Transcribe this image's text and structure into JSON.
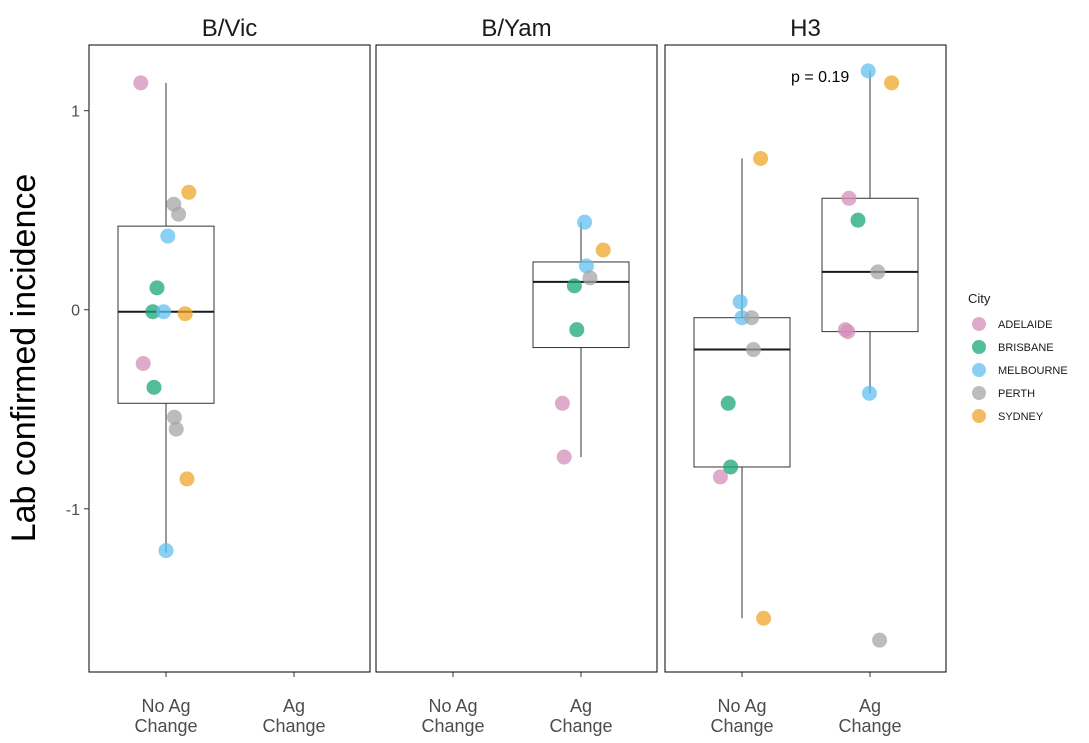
{
  "chart_data": {
    "type": "scatter",
    "ylabel": "Lab confirmed incidence",
    "xlabel": "",
    "ylim": [
      -1.82,
      1.33
    ],
    "y_ticks": [
      {
        "value": 1,
        "label": "1"
      },
      {
        "value": 0,
        "label": "0"
      },
      {
        "value": -1,
        "label": "-1"
      }
    ],
    "categories": [
      {
        "key": "noag",
        "line1": "No Ag",
        "line2": "Change"
      },
      {
        "key": "ag",
        "line1": "Ag",
        "line2": "Change"
      }
    ],
    "legend": {
      "title": "City",
      "position": "right",
      "entries": [
        {
          "name": "ADELAIDE",
          "color": "#d48fb8"
        },
        {
          "name": "BRISBANE",
          "color": "#1aa57a"
        },
        {
          "name": "MELBOURNE",
          "color": "#63bff0"
        },
        {
          "name": "PERTH",
          "color": "#a6a6a6"
        },
        {
          "name": "SYDNEY",
          "color": "#eda62a"
        }
      ]
    },
    "panels": [
      {
        "title": "B/Vic",
        "annotation": "",
        "boxes": [
          {
            "category": "noag",
            "lower_whisker": -1.22,
            "q1": -0.47,
            "median": -0.01,
            "q3": 0.42,
            "upper_whisker": 1.14
          }
        ],
        "points": [
          {
            "category": "noag",
            "jitter": -0.42,
            "y": 1.14,
            "city": "ADELAIDE"
          },
          {
            "category": "noag",
            "jitter": -0.38,
            "y": -0.27,
            "city": "ADELAIDE"
          },
          {
            "category": "noag",
            "jitter": -0.15,
            "y": 0.11,
            "city": "BRISBANE"
          },
          {
            "category": "noag",
            "jitter": -0.22,
            "y": -0.01,
            "city": "BRISBANE"
          },
          {
            "category": "noag",
            "jitter": -0.2,
            "y": -0.39,
            "city": "BRISBANE"
          },
          {
            "category": "noag",
            "jitter": 0.03,
            "y": 0.37,
            "city": "MELBOURNE"
          },
          {
            "category": "noag",
            "jitter": -0.04,
            "y": -0.01,
            "city": "MELBOURNE"
          },
          {
            "category": "noag",
            "jitter": 0.0,
            "y": -1.21,
            "city": "MELBOURNE"
          },
          {
            "category": "noag",
            "jitter": 0.13,
            "y": 0.53,
            "city": "PERTH"
          },
          {
            "category": "noag",
            "jitter": 0.21,
            "y": 0.48,
            "city": "PERTH"
          },
          {
            "category": "noag",
            "jitter": 0.14,
            "y": -0.54,
            "city": "PERTH"
          },
          {
            "category": "noag",
            "jitter": 0.17,
            "y": -0.6,
            "city": "PERTH"
          },
          {
            "category": "noag",
            "jitter": 0.38,
            "y": 0.59,
            "city": "SYDNEY"
          },
          {
            "category": "noag",
            "jitter": 0.32,
            "y": -0.02,
            "city": "SYDNEY"
          },
          {
            "category": "noag",
            "jitter": 0.35,
            "y": -0.85,
            "city": "SYDNEY"
          }
        ]
      },
      {
        "title": "B/Yam",
        "annotation": "",
        "boxes": [
          {
            "category": "ag",
            "lower_whisker": -0.74,
            "q1": -0.19,
            "median": 0.14,
            "q3": 0.24,
            "upper_whisker": 0.44
          }
        ],
        "points": [
          {
            "category": "ag",
            "jitter": -0.31,
            "y": -0.47,
            "city": "ADELAIDE"
          },
          {
            "category": "ag",
            "jitter": -0.28,
            "y": -0.74,
            "city": "ADELAIDE"
          },
          {
            "category": "ag",
            "jitter": -0.11,
            "y": 0.12,
            "city": "BRISBANE"
          },
          {
            "category": "ag",
            "jitter": -0.07,
            "y": -0.1,
            "city": "BRISBANE"
          },
          {
            "category": "ag",
            "jitter": 0.06,
            "y": 0.44,
            "city": "MELBOURNE"
          },
          {
            "category": "ag",
            "jitter": 0.09,
            "y": 0.22,
            "city": "MELBOURNE"
          },
          {
            "category": "ag",
            "jitter": 0.15,
            "y": 0.16,
            "city": "PERTH"
          },
          {
            "category": "ag",
            "jitter": 0.37,
            "y": 0.3,
            "city": "SYDNEY"
          }
        ]
      },
      {
        "title": "H3",
        "annotation": "p = 0.19",
        "boxes": [
          {
            "category": "noag",
            "lower_whisker": -1.55,
            "q1": -0.79,
            "median": -0.2,
            "q3": -0.04,
            "upper_whisker": 0.76
          },
          {
            "category": "ag",
            "lower_whisker": -0.42,
            "q1": -0.11,
            "median": 0.19,
            "q3": 0.56,
            "upper_whisker": 1.2
          }
        ],
        "points": [
          {
            "category": "noag",
            "jitter": -0.36,
            "y": -0.84,
            "city": "ADELAIDE"
          },
          {
            "category": "noag",
            "jitter": -0.23,
            "y": -0.47,
            "city": "BRISBANE"
          },
          {
            "category": "noag",
            "jitter": -0.19,
            "y": -0.79,
            "city": "BRISBANE"
          },
          {
            "category": "noag",
            "jitter": -0.03,
            "y": 0.04,
            "city": "MELBOURNE"
          },
          {
            "category": "noag",
            "jitter": 0.0,
            "y": -0.04,
            "city": "MELBOURNE"
          },
          {
            "category": "noag",
            "jitter": 0.16,
            "y": -0.04,
            "city": "PERTH"
          },
          {
            "category": "noag",
            "jitter": 0.19,
            "y": -0.2,
            "city": "PERTH"
          },
          {
            "category": "noag",
            "jitter": 0.31,
            "y": 0.76,
            "city": "SYDNEY"
          },
          {
            "category": "noag",
            "jitter": 0.36,
            "y": -1.55,
            "city": "SYDNEY"
          },
          {
            "category": "ag",
            "jitter": -0.35,
            "y": 0.56,
            "city": "ADELAIDE"
          },
          {
            "category": "ag",
            "jitter": -0.41,
            "y": -0.1,
            "city": "ADELAIDE"
          },
          {
            "category": "ag",
            "jitter": -0.37,
            "y": -0.11,
            "city": "ADELAIDE"
          },
          {
            "category": "ag",
            "jitter": -0.2,
            "y": 0.45,
            "city": "BRISBANE"
          },
          {
            "category": "ag",
            "jitter": -0.03,
            "y": 1.2,
            "city": "MELBOURNE"
          },
          {
            "category": "ag",
            "jitter": -0.01,
            "y": -0.42,
            "city": "MELBOURNE"
          },
          {
            "category": "ag",
            "jitter": 0.13,
            "y": 0.19,
            "city": "PERTH"
          },
          {
            "category": "ag",
            "jitter": 0.16,
            "y": -1.66,
            "city": "PERTH"
          },
          {
            "category": "ag",
            "jitter": 0.36,
            "y": 1.14,
            "city": "SYDNEY"
          }
        ]
      }
    ]
  }
}
